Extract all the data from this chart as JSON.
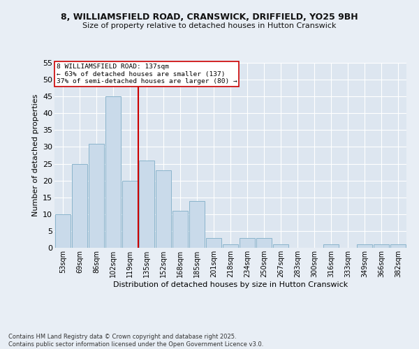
{
  "title_line1": "8, WILLIAMSFIELD ROAD, CRANSWICK, DRIFFIELD, YO25 9BH",
  "title_line2": "Size of property relative to detached houses in Hutton Cranswick",
  "xlabel": "Distribution of detached houses by size in Hutton Cranswick",
  "ylabel": "Number of detached properties",
  "bar_labels": [
    "53sqm",
    "69sqm",
    "86sqm",
    "102sqm",
    "119sqm",
    "135sqm",
    "152sqm",
    "168sqm",
    "185sqm",
    "201sqm",
    "218sqm",
    "234sqm",
    "250sqm",
    "267sqm",
    "283sqm",
    "300sqm",
    "316sqm",
    "333sqm",
    "349sqm",
    "366sqm",
    "382sqm"
  ],
  "bar_values": [
    10,
    25,
    31,
    45,
    20,
    26,
    23,
    11,
    14,
    3,
    1,
    3,
    3,
    1,
    0,
    0,
    1,
    0,
    1,
    1,
    1
  ],
  "bar_color": "#c9daea",
  "bar_edge_color": "#8ab4cc",
  "background_color": "#e8eef5",
  "plot_bg_color": "#dde6f0",
  "grid_color": "#ffffff",
  "vline_x_index": 5,
  "vline_color": "#cc0000",
  "annotation_text": "8 WILLIAMSFIELD ROAD: 137sqm\n← 63% of detached houses are smaller (137)\n37% of semi-detached houses are larger (80) →",
  "annotation_box_color": "#ffffff",
  "annotation_box_edge": "#cc0000",
  "footer_text": "Contains HM Land Registry data © Crown copyright and database right 2025.\nContains public sector information licensed under the Open Government Licence v3.0.",
  "ylim": [
    0,
    55
  ],
  "yticks": [
    0,
    5,
    10,
    15,
    20,
    25,
    30,
    35,
    40,
    45,
    50,
    55
  ]
}
